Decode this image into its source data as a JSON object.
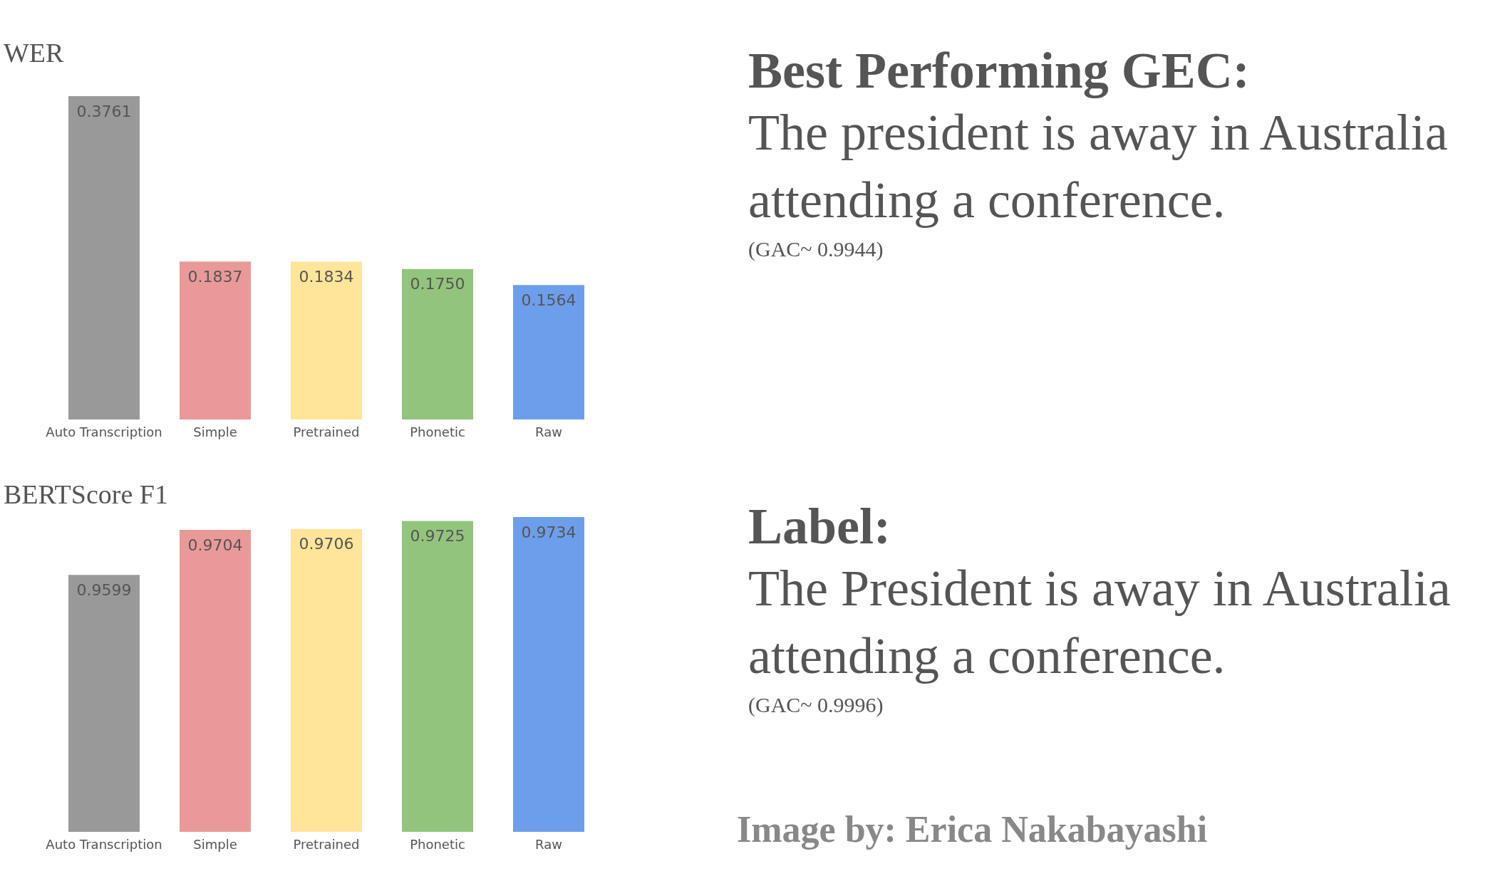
{
  "chart_data": [
    {
      "type": "bar",
      "title": "WER",
      "categories": [
        "Auto Transcription",
        "Simple",
        "Pretrained",
        "Phonetic",
        "Raw"
      ],
      "values": [
        0.3761,
        0.1837,
        0.1834,
        0.175,
        0.1564
      ],
      "value_labels": [
        "0.3761",
        "0.1837",
        "0.1834",
        "0.1750",
        "0.1564"
      ],
      "colors": [
        "#999999",
        "#ea9999",
        "#ffe599",
        "#93c47d",
        "#6d9eeb"
      ],
      "ylim": [
        0,
        0.3761
      ],
      "tick_labels": "x"
    },
    {
      "type": "bar",
      "title": "BERTScore F1",
      "categories": [
        "Auto Transcription",
        "Simple",
        "Pretrained",
        "Phonetic",
        "Raw"
      ],
      "values": [
        0.9599,
        0.9704,
        0.9706,
        0.9725,
        0.9734
      ],
      "value_labels": [
        "0.9599",
        "0.9704",
        "0.9706",
        "0.9725",
        "0.9734"
      ],
      "colors": [
        "#999999",
        "#ea9999",
        "#ffe599",
        "#93c47d",
        "#6d9eeb"
      ],
      "ylim": [
        0.9,
        0.9734
      ],
      "tick_labels": "x"
    },
    {
      "type": "other",
      "title": "Best Performing GEC:",
      "annotations": [
        "The president is away in Australia attending a conference.",
        "(GAC~ 0.9944)"
      ]
    },
    {
      "type": "other",
      "title": "Label:",
      "annotations": [
        "The President is away in Australia attending a conference.",
        "(GAC~ 0.9996)",
        "Image by: Erica Nakabayashi"
      ]
    }
  ]
}
